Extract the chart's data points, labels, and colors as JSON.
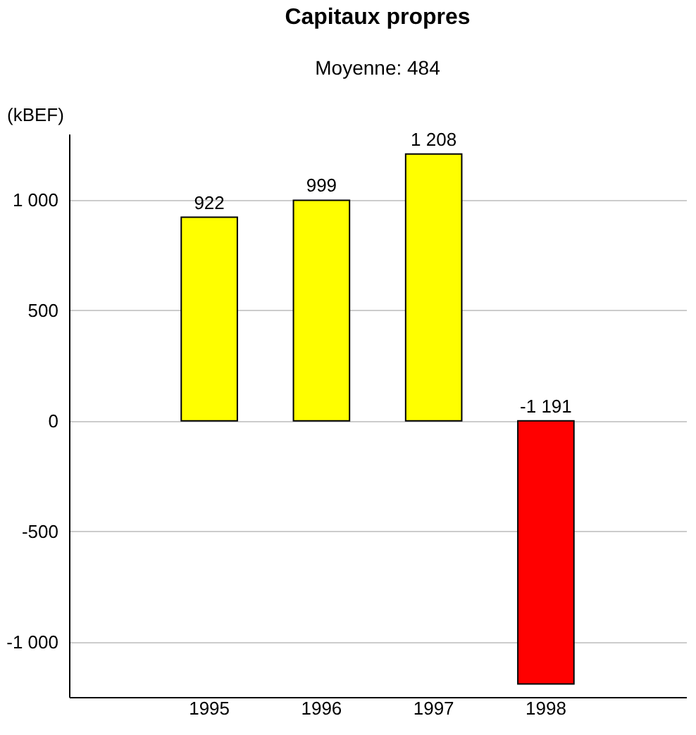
{
  "chart_data": {
    "type": "bar",
    "title": "Capitaux propres",
    "subtitle": "Moyenne: 484",
    "ylabel": "(kBEF)",
    "categories": [
      "1995",
      "1996",
      "1997",
      "1998"
    ],
    "values": [
      922,
      999,
      1208,
      -1191
    ],
    "colors": [
      "#ffff00",
      "#ffff00",
      "#ffff00",
      "#ff0000"
    ],
    "value_labels": [
      "922",
      "999",
      "1 208",
      "-1 191"
    ],
    "ylim": [
      -1250,
      1300
    ],
    "yticks": [
      {
        "value": -1000,
        "label": "-1 000"
      },
      -500,
      0,
      500,
      {
        "value": 1000,
        "label": "1 000"
      }
    ],
    "grid": "y"
  }
}
